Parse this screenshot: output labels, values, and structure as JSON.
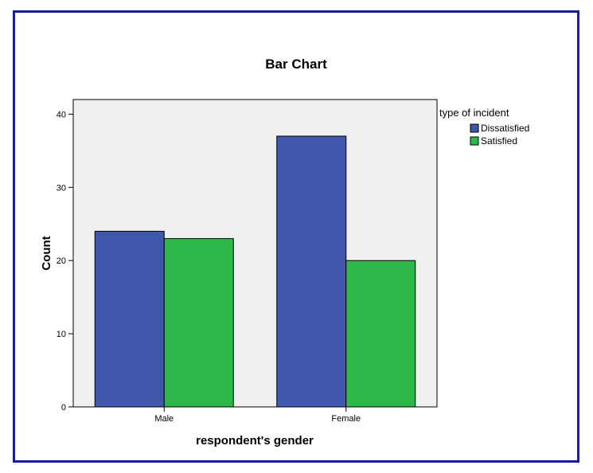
{
  "chart_data": {
    "type": "bar",
    "title": "Bar Chart",
    "xlabel": "respondent's gender",
    "ylabel": "Count",
    "categories": [
      "Male",
      "Female"
    ],
    "series": [
      {
        "name": "Dissatisfied",
        "values": [
          24,
          37
        ],
        "color": "#3f58ad"
      },
      {
        "name": "Satisfied",
        "values": [
          23,
          20
        ],
        "color": "#2fb84a"
      }
    ],
    "ylim": [
      0,
      42
    ],
    "yticks": [
      0,
      10,
      20,
      30,
      40
    ],
    "legend": {
      "title": "type of incident",
      "placement": "top-right outside"
    },
    "grid": false,
    "plot_background": "#f0f0f0"
  }
}
